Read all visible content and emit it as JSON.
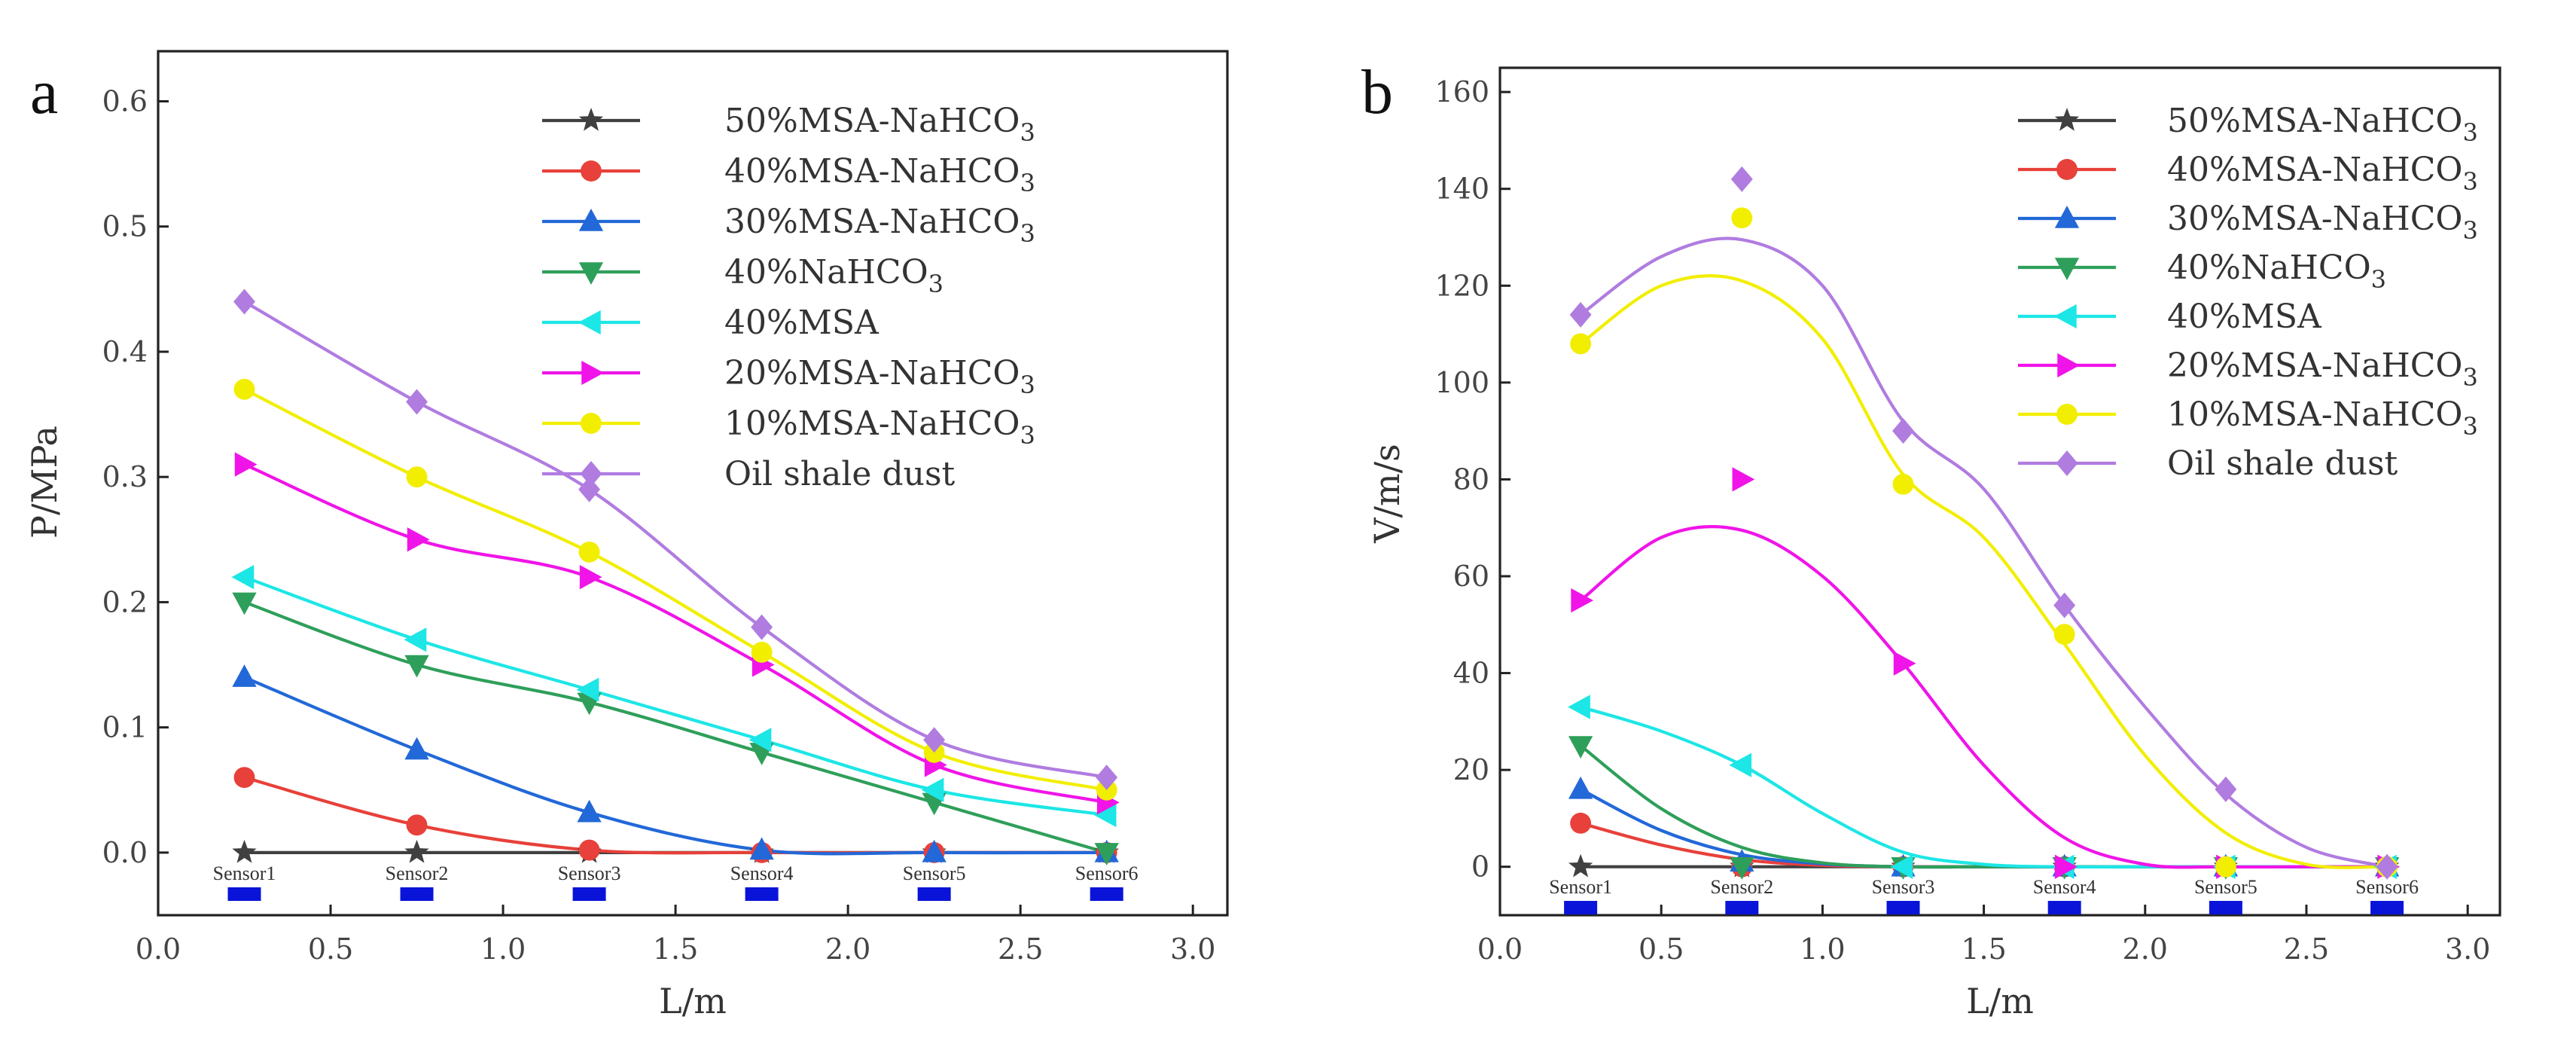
{
  "chart_data": [
    {
      "type": "line",
      "panel_label": "a",
      "xlabel": "L/m",
      "ylabel": "P/MPa",
      "xlim": [
        0.0,
        3.1
      ],
      "ylim": [
        -0.05,
        0.64
      ],
      "xticks": [
        0.0,
        0.5,
        1.0,
        1.5,
        2.0,
        2.5,
        3.0
      ],
      "xtick_labels": [
        "0.0",
        "0.5",
        "1.0",
        "1.5",
        "2.0",
        "2.5",
        "3.0"
      ],
      "yticks": [
        0.0,
        0.1,
        0.2,
        0.3,
        0.4,
        0.5,
        0.6
      ],
      "ytick_labels": [
        "0.0",
        "0.1",
        "0.2",
        "0.3",
        "0.4",
        "0.5",
        "0.6"
      ],
      "legend_position": "top-right",
      "sensors": [
        {
          "label": "Sensor1",
          "x": 0.25
        },
        {
          "label": "Sensor2",
          "x": 0.75
        },
        {
          "label": "Sensor3",
          "x": 1.25
        },
        {
          "label": "Sensor4",
          "x": 1.75
        },
        {
          "label": "Sensor5",
          "x": 2.25
        },
        {
          "label": "Sensor6",
          "x": 2.75
        }
      ],
      "x": [
        0.25,
        0.75,
        1.25,
        1.75,
        2.25,
        2.75
      ],
      "series": [
        {
          "name": "50%MSA-NaHCO",
          "sub": "3",
          "color": "#404040",
          "marker": "star",
          "values": [
            0.0,
            0.0,
            0.0,
            0.0,
            0.0,
            0.0
          ],
          "fit": [
            0.0,
            0.0,
            0.0,
            0.0,
            0.0,
            0.0
          ]
        },
        {
          "name": "40%MSA-NaHCO",
          "sub": "3",
          "color": "#e8403a",
          "marker": "circle",
          "values": [
            0.06,
            0.022,
            0.002,
            0.0,
            0.0,
            0.0
          ],
          "fit": [
            0.06,
            0.022,
            0.002,
            0.0,
            0.0,
            0.0
          ]
        },
        {
          "name": "30%MSA-NaHCO",
          "sub": "3",
          "color": "#2268d8",
          "marker": "triangle-up",
          "values": [
            0.14,
            0.082,
            0.032,
            0.002,
            0.0,
            0.0
          ],
          "fit": [
            0.14,
            0.082,
            0.032,
            0.002,
            0.0,
            0.0
          ]
        },
        {
          "name": "40%NaHCO",
          "sub": "3",
          "color": "#2e9f5a",
          "marker": "triangle-down",
          "values": [
            0.2,
            0.15,
            0.12,
            0.08,
            0.04,
            0.0
          ],
          "fit": [
            0.2,
            0.15,
            0.12,
            0.08,
            0.04,
            0.0
          ]
        },
        {
          "name": "40%MSA",
          "sub": "",
          "color": "#1de6e6",
          "marker": "triangle-left",
          "values": [
            0.22,
            0.17,
            0.13,
            0.09,
            0.05,
            0.03
          ],
          "fit": [
            0.22,
            0.17,
            0.13,
            0.09,
            0.05,
            0.03
          ]
        },
        {
          "name": "20%MSA-NaHCO",
          "sub": "3",
          "color": "#f014e8",
          "marker": "triangle-right",
          "values": [
            0.31,
            0.25,
            0.22,
            0.15,
            0.07,
            0.04
          ],
          "fit": [
            0.31,
            0.25,
            0.22,
            0.15,
            0.07,
            0.04
          ]
        },
        {
          "name": "10%MSA-NaHCO",
          "sub": "3",
          "color": "#f2ee00",
          "marker": "circle",
          "values": [
            0.37,
            0.3,
            0.24,
            0.16,
            0.08,
            0.05
          ],
          "fit": [
            0.37,
            0.3,
            0.24,
            0.16,
            0.08,
            0.05
          ]
        },
        {
          "name": "Oil shale dust",
          "sub": "",
          "color": "#b07ce0",
          "marker": "diamond",
          "values": [
            0.44,
            0.36,
            0.29,
            0.18,
            0.09,
            0.06
          ],
          "fit": [
            0.44,
            0.36,
            0.29,
            0.18,
            0.09,
            0.06
          ]
        }
      ]
    },
    {
      "type": "scatter",
      "panel_label": "b",
      "xlabel": "L/m",
      "ylabel": "V/m/s",
      "xlim": [
        0.0,
        3.1
      ],
      "ylim": [
        -10,
        165
      ],
      "xticks": [
        0.0,
        0.5,
        1.0,
        1.5,
        2.0,
        2.5,
        3.0
      ],
      "xtick_labels": [
        "0.0",
        "0.5",
        "1.0",
        "1.5",
        "2.0",
        "2.5",
        "3.0"
      ],
      "yticks": [
        0,
        20,
        40,
        60,
        80,
        100,
        120,
        140,
        160
      ],
      "ytick_labels": [
        "0",
        "20",
        "40",
        "60",
        "80",
        "100",
        "120",
        "140",
        "160"
      ],
      "legend_position": "top-right",
      "sensors": [
        {
          "label": "Sensor1",
          "x": 0.25
        },
        {
          "label": "Sensor2",
          "x": 0.75
        },
        {
          "label": "Sensor3",
          "x": 1.25
        },
        {
          "label": "Sensor4",
          "x": 1.75
        },
        {
          "label": "Sensor5",
          "x": 2.25
        },
        {
          "label": "Sensor6",
          "x": 2.75
        }
      ],
      "x": [
        0.25,
        0.75,
        1.25,
        1.75,
        2.25,
        2.75
      ],
      "fit_x": [
        0.25,
        0.5,
        0.75,
        1.0,
        1.25,
        1.5,
        1.75,
        2.0,
        2.25,
        2.5,
        2.75
      ],
      "series": [
        {
          "name": "50%MSA-NaHCO",
          "sub": "3",
          "color": "#404040",
          "marker": "star",
          "values": [
            0,
            0,
            0,
            0,
            0,
            0
          ],
          "fit": [
            0,
            0,
            0,
            0,
            0,
            0,
            0,
            0,
            0,
            0,
            0
          ]
        },
        {
          "name": "40%MSA-NaHCO",
          "sub": "3",
          "color": "#e8403a",
          "marker": "circle",
          "values": [
            9,
            0,
            0,
            0,
            0,
            0
          ],
          "fit": [
            9,
            4.5,
            1.5,
            0.3,
            0,
            0,
            0,
            0,
            0,
            0,
            0
          ]
        },
        {
          "name": "30%MSA-NaHCO",
          "sub": "3",
          "color": "#2268d8",
          "marker": "triangle-up",
          "values": [
            16,
            1,
            0,
            0,
            0,
            0
          ],
          "fit": [
            16,
            7.5,
            2.5,
            0.6,
            0,
            0,
            0,
            0,
            0,
            0,
            0
          ]
        },
        {
          "name": "40%NaHCO",
          "sub": "3",
          "color": "#2e9f5a",
          "marker": "triangle-down",
          "values": [
            25,
            0,
            0,
            0,
            0,
            0
          ],
          "fit": [
            25,
            12,
            4,
            0.8,
            0,
            0,
            0,
            0,
            0,
            0,
            0
          ]
        },
        {
          "name": "40%MSA",
          "sub": "",
          "color": "#1de6e6",
          "marker": "triangle-left",
          "values": [
            33,
            21,
            0,
            0,
            0,
            0
          ],
          "fit": [
            33,
            28,
            21,
            11,
            3,
            0.5,
            0,
            0,
            0,
            0,
            0
          ]
        },
        {
          "name": "20%MSA-NaHCO",
          "sub": "3",
          "color": "#f014e8",
          "marker": "triangle-right",
          "values": [
            55,
            80,
            42,
            0,
            0,
            0
          ],
          "fit": [
            55,
            68,
            69.5,
            60,
            42,
            21,
            6,
            0.5,
            0,
            0,
            0
          ]
        },
        {
          "name": "10%MSA-NaHCO",
          "sub": "3",
          "color": "#f2ee00",
          "marker": "circle",
          "values": [
            108,
            134,
            79,
            48,
            0,
            0
          ],
          "fit": [
            108,
            120,
            121,
            109,
            81,
            68,
            46,
            23,
            7,
            0.5,
            0
          ]
        },
        {
          "name": "Oil shale dust",
          "sub": "",
          "color": "#b07ce0",
          "marker": "diamond",
          "values": [
            114,
            142,
            90,
            54,
            16,
            0
          ],
          "fit": [
            114,
            126,
            129.5,
            120,
            92,
            78,
            54,
            33,
            15,
            4,
            0
          ]
        }
      ]
    }
  ]
}
